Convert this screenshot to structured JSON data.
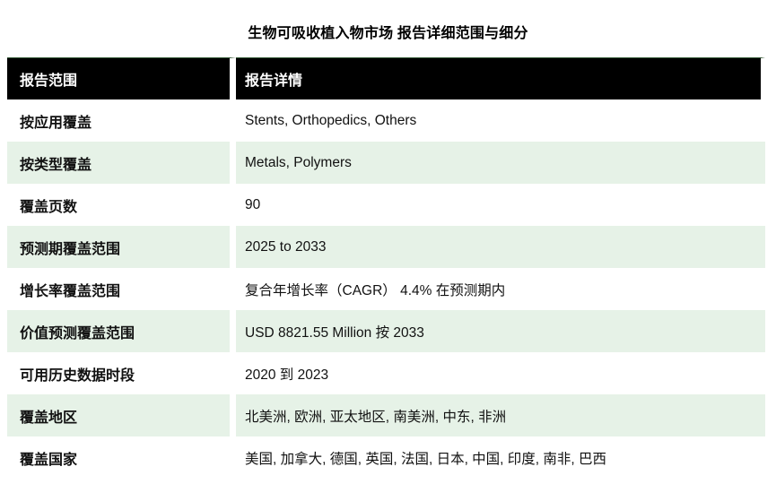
{
  "title": "生物可吸收植入物市场 报告详细范围与细分",
  "table": {
    "headers": [
      "报告范围",
      "报告详情"
    ],
    "rows": [
      {
        "label": "按应用覆盖",
        "value": "Stents, Orthopedics, Others"
      },
      {
        "label": "按类型覆盖",
        "value": "Metals, Polymers"
      },
      {
        "label": "覆盖页数",
        "value": "90"
      },
      {
        "label": "预测期覆盖范围",
        "value": "2025 to 2033"
      },
      {
        "label": "增长率覆盖范围",
        "value": "复合年增长率（CAGR） 4.4% 在预测期内"
      },
      {
        "label": "价值预测覆盖范围",
        "value": "USD 8821.55 Million 按 2033"
      },
      {
        "label": "可用历史数据时段",
        "value": "2020 到 2023"
      },
      {
        "label": "覆盖地区",
        "value": "北美洲, 欧洲, 亚太地区, 南美洲, 中东, 非洲"
      },
      {
        "label": "覆盖国家",
        "value": "美国, 加拿大, 德国, 英国, 法国, 日本, 中国, 印度, 南非, 巴西"
      }
    ]
  },
  "colors": {
    "header_bg": "#000000",
    "header_text": "#ffffff",
    "row_bg": "#ffffff",
    "row_alt_bg": "#e6f2e7",
    "text": "#111111"
  }
}
